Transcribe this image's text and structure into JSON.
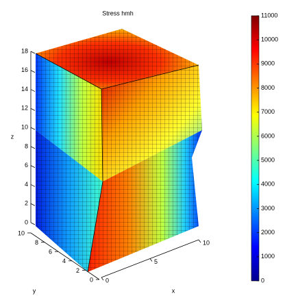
{
  "chart_data": {
    "type": "surface",
    "title": "Stress hmh",
    "xlabel": "x",
    "ylabel": "y",
    "zlabel": "z",
    "xlim": [
      0,
      10
    ],
    "xticks": [
      0,
      5,
      10
    ],
    "ylim": [
      0,
      10
    ],
    "yticks": [
      0,
      2,
      4,
      6,
      8,
      10
    ],
    "zlim": [
      0,
      18
    ],
    "zticks": [
      0,
      2,
      4,
      6,
      8,
      10,
      12,
      14,
      16,
      18
    ],
    "colorbar": {
      "colormap": "jet",
      "clim": [
        0,
        11000
      ],
      "ticks": [
        0,
        1000,
        2000,
        3000,
        4000,
        5000,
        6000,
        7000,
        8000,
        9000,
        10000,
        11000
      ]
    }
  }
}
